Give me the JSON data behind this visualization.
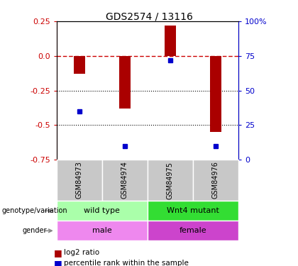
{
  "title": "GDS2574 / 13116",
  "samples": [
    "GSM84973",
    "GSM84974",
    "GSM84975",
    "GSM84976"
  ],
  "log2_ratio": [
    -0.13,
    -0.38,
    0.22,
    -0.55
  ],
  "percentile_rank": [
    35,
    10,
    72,
    10
  ],
  "bar_color": "#aa0000",
  "dot_color": "#0000cc",
  "zero_line_color": "#cc0000",
  "genotype_labels": [
    "wild type",
    "Wnt4 mutant"
  ],
  "genotype_counts": [
    2,
    2
  ],
  "genotype_colors": [
    "#aaffaa",
    "#33dd33"
  ],
  "gender_labels": [
    "male",
    "female"
  ],
  "gender_counts": [
    2,
    2
  ],
  "gender_colors": [
    "#ee88ee",
    "#cc44cc"
  ],
  "sample_bg_color": "#c8c8c8",
  "left_yticks": [
    0.25,
    0.0,
    -0.25,
    -0.5,
    -0.75
  ],
  "right_yticks": [
    100,
    75,
    50,
    25,
    0
  ],
  "right_ytick_labels": [
    "100%",
    "75",
    "50",
    "25",
    "0"
  ]
}
